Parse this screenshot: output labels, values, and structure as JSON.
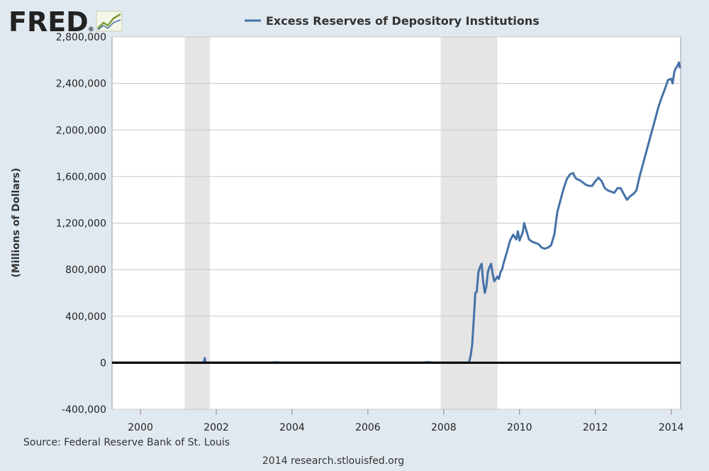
{
  "logo": {
    "text": "FRED",
    "registered": "®"
  },
  "footer": {
    "source": "Source: Federal Reserve Bank of St. Louis",
    "credit": "2014 research.stlouisfed.org"
  },
  "colors": {
    "background": "#e1e9f0",
    "plot_background": "#ffffff",
    "series": "#4572a7",
    "recession": "#e5e5e5",
    "zero_line": "#000000",
    "logo_text": "#222222"
  },
  "chart_data": {
    "type": "line",
    "title": "",
    "xlabel": "",
    "ylabel": "(Millions of Dollars)",
    "ylim": [
      -400000,
      2800000
    ],
    "yticks": [
      -400000,
      0,
      400000,
      800000,
      1200000,
      1600000,
      2000000,
      2400000,
      2800000
    ],
    "ytick_labels": [
      "-400,000",
      "0",
      "400,000",
      "800,000",
      "1,200,000",
      "1,600,000",
      "2,000,000",
      "2,400,000",
      "2,800,000"
    ],
    "xlim": [
      "1999-04-01",
      "2014-04-01"
    ],
    "xticks": [
      2000,
      2002,
      2004,
      2006,
      2008,
      2010,
      2012,
      2014
    ],
    "xtick_labels": [
      "2000",
      "2002",
      "2004",
      "2006",
      "2008",
      "2010",
      "2012",
      "2014"
    ],
    "grid": "horizontal",
    "legend": "top-center",
    "recessions": [
      {
        "start": "2001-03-01",
        "end": "2001-11-01"
      },
      {
        "start": "2007-12-01",
        "end": "2009-06-01"
      }
    ],
    "series": [
      {
        "name": "Excess Reserves of Depository Institutions",
        "color": "#4572a7",
        "x": [
          "1999-04-01",
          "2000-01-01",
          "2001-01-01",
          "2001-09-01",
          "2001-09-12",
          "2001-09-19",
          "2001-10-01",
          "2002-06-01",
          "2003-06-01",
          "2003-08-15",
          "2003-09-01",
          "2004-06-01",
          "2005-06-01",
          "2006-06-01",
          "2007-06-01",
          "2007-08-15",
          "2007-09-01",
          "2008-03-01",
          "2008-09-01",
          "2008-09-17",
          "2008-10-01",
          "2008-10-15",
          "2008-11-01",
          "2008-11-15",
          "2008-12-01",
          "2008-12-15",
          "2009-01-01",
          "2009-01-15",
          "2009-02-01",
          "2009-02-15",
          "2009-03-01",
          "2009-03-15",
          "2009-04-01",
          "2009-04-15",
          "2009-05-01",
          "2009-06-01",
          "2009-06-15",
          "2009-07-01",
          "2009-07-15",
          "2009-08-01",
          "2009-09-01",
          "2009-10-01",
          "2009-11-01",
          "2009-12-01",
          "2009-12-15",
          "2010-01-01",
          "2010-02-01",
          "2010-02-15",
          "2010-03-01",
          "2010-04-01",
          "2010-05-01",
          "2010-06-01",
          "2010-07-01",
          "2010-08-01",
          "2010-09-01",
          "2010-10-01",
          "2010-11-01",
          "2010-12-01",
          "2011-01-01",
          "2011-02-01",
          "2011-03-01",
          "2011-04-01",
          "2011-05-01",
          "2011-06-01",
          "2011-06-15",
          "2011-07-01",
          "2011-08-01",
          "2011-09-01",
          "2011-10-01",
          "2011-11-01",
          "2011-12-01",
          "2012-01-01",
          "2012-02-01",
          "2012-03-01",
          "2012-04-01",
          "2012-05-01",
          "2012-06-01",
          "2012-07-01",
          "2012-08-01",
          "2012-09-01",
          "2012-10-01",
          "2012-11-01",
          "2012-12-01",
          "2013-01-01",
          "2013-02-01",
          "2013-03-01",
          "2013-04-01",
          "2013-05-01",
          "2013-06-01",
          "2013-07-01",
          "2013-08-01",
          "2013-09-01",
          "2013-10-01",
          "2013-11-01",
          "2013-12-01",
          "2014-01-01",
          "2014-01-15",
          "2014-02-01",
          "2014-02-15",
          "2014-03-01",
          "2014-03-15",
          "2014-03-26"
        ],
        "values": [
          1500,
          1500,
          1500,
          1500,
          40000,
          5000,
          1500,
          1500,
          1500,
          5000,
          1500,
          1500,
          1500,
          1500,
          1500,
          6000,
          1500,
          1500,
          2000,
          60000,
          150000,
          350000,
          600000,
          610000,
          780000,
          820000,
          850000,
          700000,
          600000,
          650000,
          780000,
          820000,
          850000,
          770000,
          700000,
          740000,
          720000,
          780000,
          800000,
          860000,
          950000,
          1050000,
          1100000,
          1060000,
          1130000,
          1050000,
          1120000,
          1200000,
          1150000,
          1060000,
          1040000,
          1030000,
          1020000,
          990000,
          980000,
          990000,
          1010000,
          1100000,
          1300000,
          1400000,
          1500000,
          1580000,
          1620000,
          1630000,
          1600000,
          1580000,
          1570000,
          1550000,
          1530000,
          1520000,
          1520000,
          1560000,
          1590000,
          1560000,
          1500000,
          1480000,
          1470000,
          1460000,
          1500000,
          1500000,
          1450000,
          1400000,
          1430000,
          1450000,
          1480000,
          1600000,
          1700000,
          1800000,
          1900000,
          2000000,
          2100000,
          2200000,
          2280000,
          2350000,
          2430000,
          2440000,
          2400000,
          2500000,
          2530000,
          2550000,
          2580000,
          2530000
        ]
      }
    ]
  }
}
